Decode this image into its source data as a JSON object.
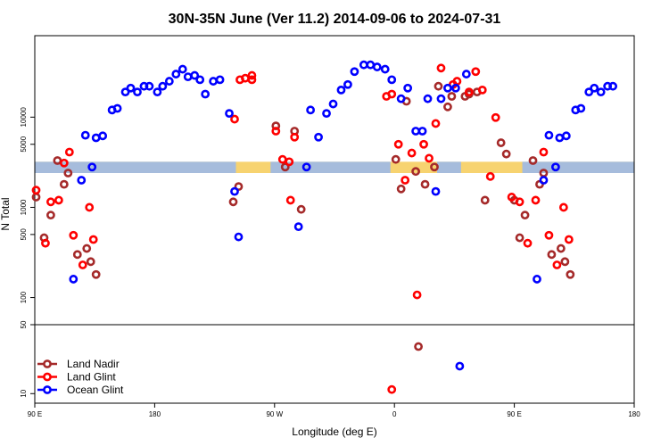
{
  "chart_data": {
    "type": "scatter",
    "title": "30N-35N June (Ver 11.2)   2014-09-06 to 2024-07-31",
    "xlabel": "Longitude (deg E)",
    "ylabel": "N Total",
    "x_ticks": [
      {
        "value": 90,
        "label": "90 E"
      },
      {
        "value": 180,
        "label": "180"
      },
      {
        "value": 270,
        "label": "90 W"
      },
      {
        "value": 360,
        "label": "0"
      },
      {
        "value": 450,
        "label": "90 E"
      },
      {
        "value": 540,
        "label": "180"
      }
    ],
    "upper_y_ticks": [
      {
        "value": 100,
        "label": "100"
      },
      {
        "value": 500,
        "label": "500"
      },
      {
        "value": 1000,
        "label": "1000"
      },
      {
        "value": 5000,
        "label": "5000"
      },
      {
        "value": 10000,
        "label": "10000"
      }
    ],
    "lower_y_ticks": [
      {
        "value": 10,
        "label": "10"
      },
      {
        "value": 50,
        "label": "50"
      }
    ],
    "xlim": [
      90,
      540
    ],
    "upper_ylim": [
      50,
      80000
    ],
    "lower_ylim": [
      8,
      50
    ],
    "log_scale_y": true,
    "grid": false,
    "legend_position": "bottom-left",
    "band": {
      "y_low": 2400,
      "y_high": 3200
    },
    "series": [
      {
        "name": "Land Nadir",
        "color": "#a52a2a",
        "points": [
          [
            91,
            1300
          ],
          [
            97,
            460
          ],
          [
            102,
            820
          ],
          [
            107,
            3300
          ],
          [
            112,
            1800
          ],
          [
            115,
            2400
          ],
          [
            122,
            300
          ],
          [
            129,
            350
          ],
          [
            132,
            250
          ],
          [
            136,
            180
          ],
          [
            239,
            1150
          ],
          [
            243,
            1700
          ],
          [
            271,
            8000
          ],
          [
            278,
            2800
          ],
          [
            285,
            7000
          ],
          [
            290,
            950
          ],
          [
            361,
            3400
          ],
          [
            365,
            1600
          ],
          [
            369,
            15000
          ],
          [
            376,
            2500
          ],
          [
            383,
            1800
          ],
          [
            390,
            2800
          ],
          [
            393,
            22000
          ],
          [
            400,
            13000
          ],
          [
            403,
            17000
          ],
          [
            413,
            17000
          ],
          [
            416,
            18000
          ],
          [
            422,
            19000
          ],
          [
            428,
            1200
          ],
          [
            440,
            5200
          ],
          [
            444,
            3900
          ],
          [
            450,
            1200
          ],
          [
            454,
            460
          ],
          [
            458,
            820
          ],
          [
            464,
            3300
          ],
          [
            469,
            1800
          ],
          [
            472,
            2400
          ],
          [
            478,
            300
          ],
          [
            485,
            350
          ],
          [
            488,
            250
          ],
          [
            492,
            180
          ]
        ]
      },
      {
        "name": "Land Glint",
        "color": "#ff0000",
        "points": [
          [
            91,
            1550
          ],
          [
            98,
            400
          ],
          [
            102,
            1150
          ],
          [
            108,
            1200
          ],
          [
            112,
            3100
          ],
          [
            116,
            4100
          ],
          [
            119,
            490
          ],
          [
            126,
            230
          ],
          [
            131,
            1000
          ],
          [
            134,
            440
          ],
          [
            240,
            9500
          ],
          [
            244,
            26000
          ],
          [
            248,
            27000
          ],
          [
            253,
            26000
          ],
          [
            253,
            29000
          ],
          [
            271,
            7000
          ],
          [
            276,
            3400
          ],
          [
            281,
            3200
          ],
          [
            285,
            6000
          ],
          [
            282,
            1200
          ],
          [
            354,
            17000
          ],
          [
            358,
            18000
          ],
          [
            363,
            5000
          ],
          [
            368,
            2000
          ],
          [
            373,
            4000
          ],
          [
            377,
            107
          ],
          [
            382,
            5000
          ],
          [
            386,
            3500
          ],
          [
            391,
            8500
          ],
          [
            395,
            35000
          ],
          [
            404,
            23000
          ],
          [
            407,
            25000
          ],
          [
            416,
            19000
          ],
          [
            421,
            32000
          ],
          [
            426,
            20000
          ],
          [
            432,
            2200
          ],
          [
            436,
            9900
          ],
          [
            448,
            1300
          ],
          [
            454,
            1150
          ],
          [
            460,
            400
          ],
          [
            466,
            1200
          ],
          [
            472,
            4100
          ],
          [
            476,
            490
          ],
          [
            482,
            230
          ],
          [
            487,
            1000
          ],
          [
            491,
            440
          ]
        ]
      },
      {
        "name": "Ocean Glint",
        "color": "#0000ff",
        "points": [
          [
            119,
            160
          ],
          [
            125,
            2000
          ],
          [
            128,
            6300
          ],
          [
            133,
            2800
          ],
          [
            136,
            5900
          ],
          [
            141,
            6200
          ],
          [
            148,
            12000
          ],
          [
            152,
            12500
          ],
          [
            158,
            19000
          ],
          [
            162,
            21000
          ],
          [
            167,
            19000
          ],
          [
            172,
            22000
          ],
          [
            176,
            22000
          ],
          [
            182,
            19000
          ],
          [
            186,
            22000
          ],
          [
            191,
            25000
          ],
          [
            196,
            30000
          ],
          [
            201,
            34000
          ],
          [
            205,
            28000
          ],
          [
            210,
            29000
          ],
          [
            214,
            26000
          ],
          [
            218,
            18000
          ],
          [
            224,
            25000
          ],
          [
            229,
            26000
          ],
          [
            236,
            11000
          ],
          [
            240,
            1500
          ],
          [
            243,
            470
          ],
          [
            288,
            610
          ],
          [
            294,
            2800
          ],
          [
            297,
            12000
          ],
          [
            303,
            6000
          ],
          [
            309,
            11000
          ],
          [
            314,
            14000
          ],
          [
            320,
            20000
          ],
          [
            325,
            23000
          ],
          [
            330,
            32000
          ],
          [
            337,
            38000
          ],
          [
            342,
            38000
          ],
          [
            347,
            36000
          ],
          [
            353,
            34000
          ],
          [
            358,
            26000
          ],
          [
            365,
            16000
          ],
          [
            370,
            21000
          ],
          [
            376,
            7000
          ],
          [
            381,
            7000
          ],
          [
            385,
            16000
          ],
          [
            391,
            1500
          ],
          [
            395,
            16000
          ],
          [
            400,
            21000
          ],
          [
            406,
            21000
          ],
          [
            409,
            19
          ],
          [
            414,
            30000
          ],
          [
            467,
            160
          ],
          [
            472,
            2000
          ],
          [
            476,
            6300
          ],
          [
            481,
            2800
          ],
          [
            484,
            5900
          ],
          [
            489,
            6200
          ],
          [
            496,
            12000
          ],
          [
            500,
            12500
          ],
          [
            506,
            19000
          ],
          [
            510,
            21000
          ],
          [
            515,
            19000
          ],
          [
            520,
            22000
          ],
          [
            524,
            22000
          ]
        ]
      },
      {
        "name": "Land Nadir",
        "legend": false,
        "color": "#a52a2a",
        "points": [
          [
            378,
            30
          ]
        ]
      },
      {
        "name": "Land Glint",
        "legend": false,
        "color": "#ff0000",
        "points": [
          [
            358,
            11
          ]
        ]
      }
    ]
  }
}
